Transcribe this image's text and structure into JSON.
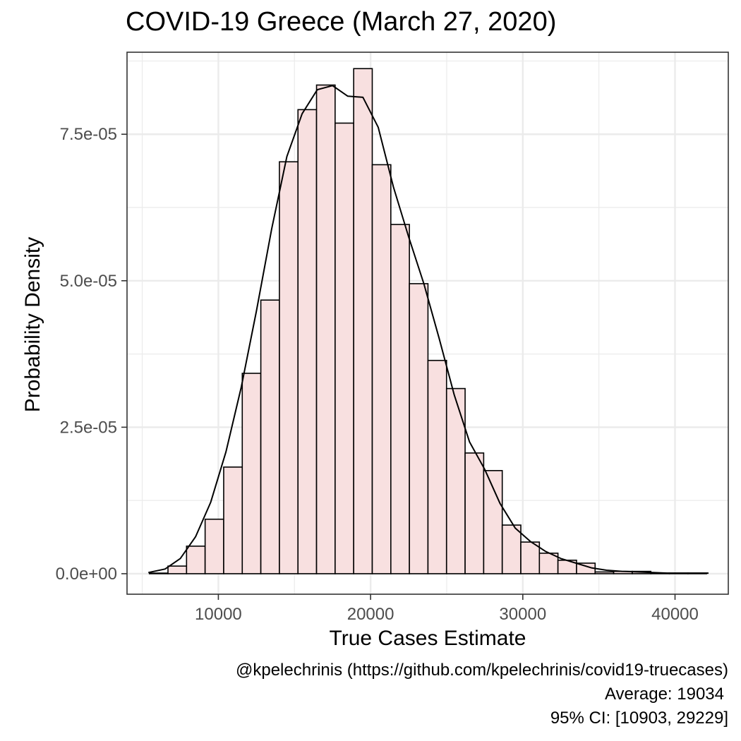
{
  "chart_data": {
    "type": "bar",
    "title": "COVID-19 Greece (March 27, 2020)",
    "xlabel": "True Cases Estimate",
    "ylabel": "Probability Density",
    "xlim": [
      4000,
      43500
    ],
    "ylim": [
      -3.5e-06,
      8.9e-05
    ],
    "x_ticks": [
      10000,
      20000,
      30000,
      40000
    ],
    "x_tick_labels": [
      "10000",
      "20000",
      "30000",
      "40000"
    ],
    "y_ticks": [
      0,
      2.5e-05,
      5e-05,
      7.5e-05
    ],
    "y_tick_labels": [
      "0.0e+00",
      "2.5e-05",
      "5.0e-05",
      "7.5e-05"
    ],
    "grid": true,
    "bin_width": 1220,
    "bin_edges_start": 5470,
    "histogram": [
      1e-07,
      1.3e-06,
      4.7e-06,
      9.3e-06,
      1.82e-05,
      3.42e-05,
      4.67e-05,
      7.03e-05,
      7.92e-05,
      8.34e-05,
      7.69e-05,
      8.62e-05,
      6.98e-05,
      5.96e-05,
      4.95e-05,
      3.64e-05,
      3.16e-05,
      2.06e-05,
      1.76e-05,
      8.3e-06,
      5.4e-06,
      3.5e-06,
      2.3e-06,
      1.8e-06,
      3e-07,
      4e-07,
      4e-07,
      1e-07,
      1e-07,
      1e-07
    ],
    "density_curve": {
      "x": [
        5400,
        6500,
        7500,
        8500,
        9500,
        10500,
        11500,
        12500,
        13500,
        14500,
        15500,
        16500,
        17500,
        18500,
        19500,
        20500,
        21500,
        22500,
        23500,
        24500,
        25500,
        26500,
        27500,
        28500,
        29500,
        30500,
        31500,
        32500,
        33500,
        34500,
        35500,
        36500,
        37500,
        38500,
        39500,
        40500,
        41500,
        42200
      ],
      "y": [
        2e-07,
        8e-07,
        2.6e-06,
        6.3e-06,
        1.22e-05,
        2.08e-05,
        3.18e-05,
        4.48e-05,
        5.88e-05,
        7.12e-05,
        7.85e-05,
        8.26e-05,
        8.33e-05,
        8.15e-05,
        8.13e-05,
        7.62e-05,
        6.6e-05,
        5.75e-05,
        4.95e-05,
        4.02e-05,
        3.05e-05,
        2.25e-05,
        1.78e-05,
        1.2e-05,
        7.8e-06,
        5.5e-06,
        3.8e-06,
        2.6e-06,
        1.8e-06,
        1e-06,
        6e-07,
        4e-07,
        3e-07,
        2e-07,
        1e-07,
        1e-07,
        1e-07,
        1e-07
      ]
    },
    "bar_fill": "#f8e0e0",
    "bar_stroke": "#000000",
    "curve_stroke": "#000000",
    "grid_color": "#ebebeb",
    "panel_border": "#333333"
  },
  "caption": {
    "line1": "@kpelechrinis (https://github.com/kpelechrinis/covid19-truecases)",
    "line2": "Average: 19034",
    "line3": "95% CI: [10903, 29229]"
  }
}
